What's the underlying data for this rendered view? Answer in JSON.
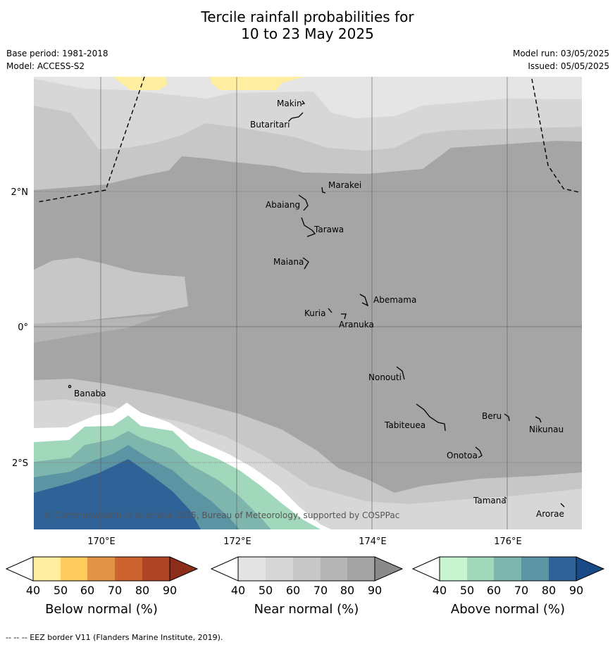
{
  "title": {
    "line1": "Tercile rainfall probabilities for",
    "line2": "10 to 23 May 2025"
  },
  "meta": {
    "base_period": "Base period: 1981-2018",
    "model": "Model: ACCESS-S2",
    "model_run": "Model run: 03/05/2025",
    "issued": "Issued: 05/05/2025"
  },
  "axes": {
    "lon_ticks": [
      "170°E",
      "172°E",
      "174°E",
      "176°E"
    ],
    "lat_ticks": [
      "2°N",
      "0°",
      "2°S"
    ]
  },
  "copyright": "© Commonwealth of Australia 2025, Bureau of Meteorology, supported by COSPPac",
  "islands": [
    {
      "name": "Makin"
    },
    {
      "name": "Butaritari"
    },
    {
      "name": "Marakei"
    },
    {
      "name": "Abaiang"
    },
    {
      "name": "Tarawa"
    },
    {
      "name": "Maiana"
    },
    {
      "name": "Abemama"
    },
    {
      "name": "Kuria"
    },
    {
      "name": "Aranuka"
    },
    {
      "name": "Nonouti"
    },
    {
      "name": "Banaba"
    },
    {
      "name": "Beru"
    },
    {
      "name": "Tabiteuea"
    },
    {
      "name": "Nikunau"
    },
    {
      "name": "Onotoa"
    },
    {
      "name": "Tamana"
    },
    {
      "name": "Arorae"
    }
  ],
  "legends": [
    {
      "label": "Below normal (%)",
      "ticks": [
        "40",
        "50",
        "60",
        "70",
        "80",
        "90"
      ],
      "colors": [
        "#ffeda0",
        "#fecb5c",
        "#e39346",
        "#cd6430",
        "#ae4626",
        "#8c2d1c"
      ]
    },
    {
      "label": "Near normal (%)",
      "ticks": [
        "40",
        "50",
        "60",
        "70",
        "80",
        "90"
      ],
      "colors": [
        "#e4e4e4",
        "#d6d6d6",
        "#c7c7c7",
        "#b5b5b5",
        "#a3a3a3",
        "#8a8a8a"
      ]
    },
    {
      "label": "Above normal (%)",
      "ticks": [
        "40",
        "50",
        "60",
        "70",
        "80",
        "90"
      ],
      "colors": [
        "#c7f5cf",
        "#a1d8bb",
        "#7eb6ae",
        "#5b95a3",
        "#2f6398",
        "#184b86"
      ]
    }
  ],
  "footer": "--  --  -- EEZ border V11 (Flanders Marine Institute, 2019)."
}
